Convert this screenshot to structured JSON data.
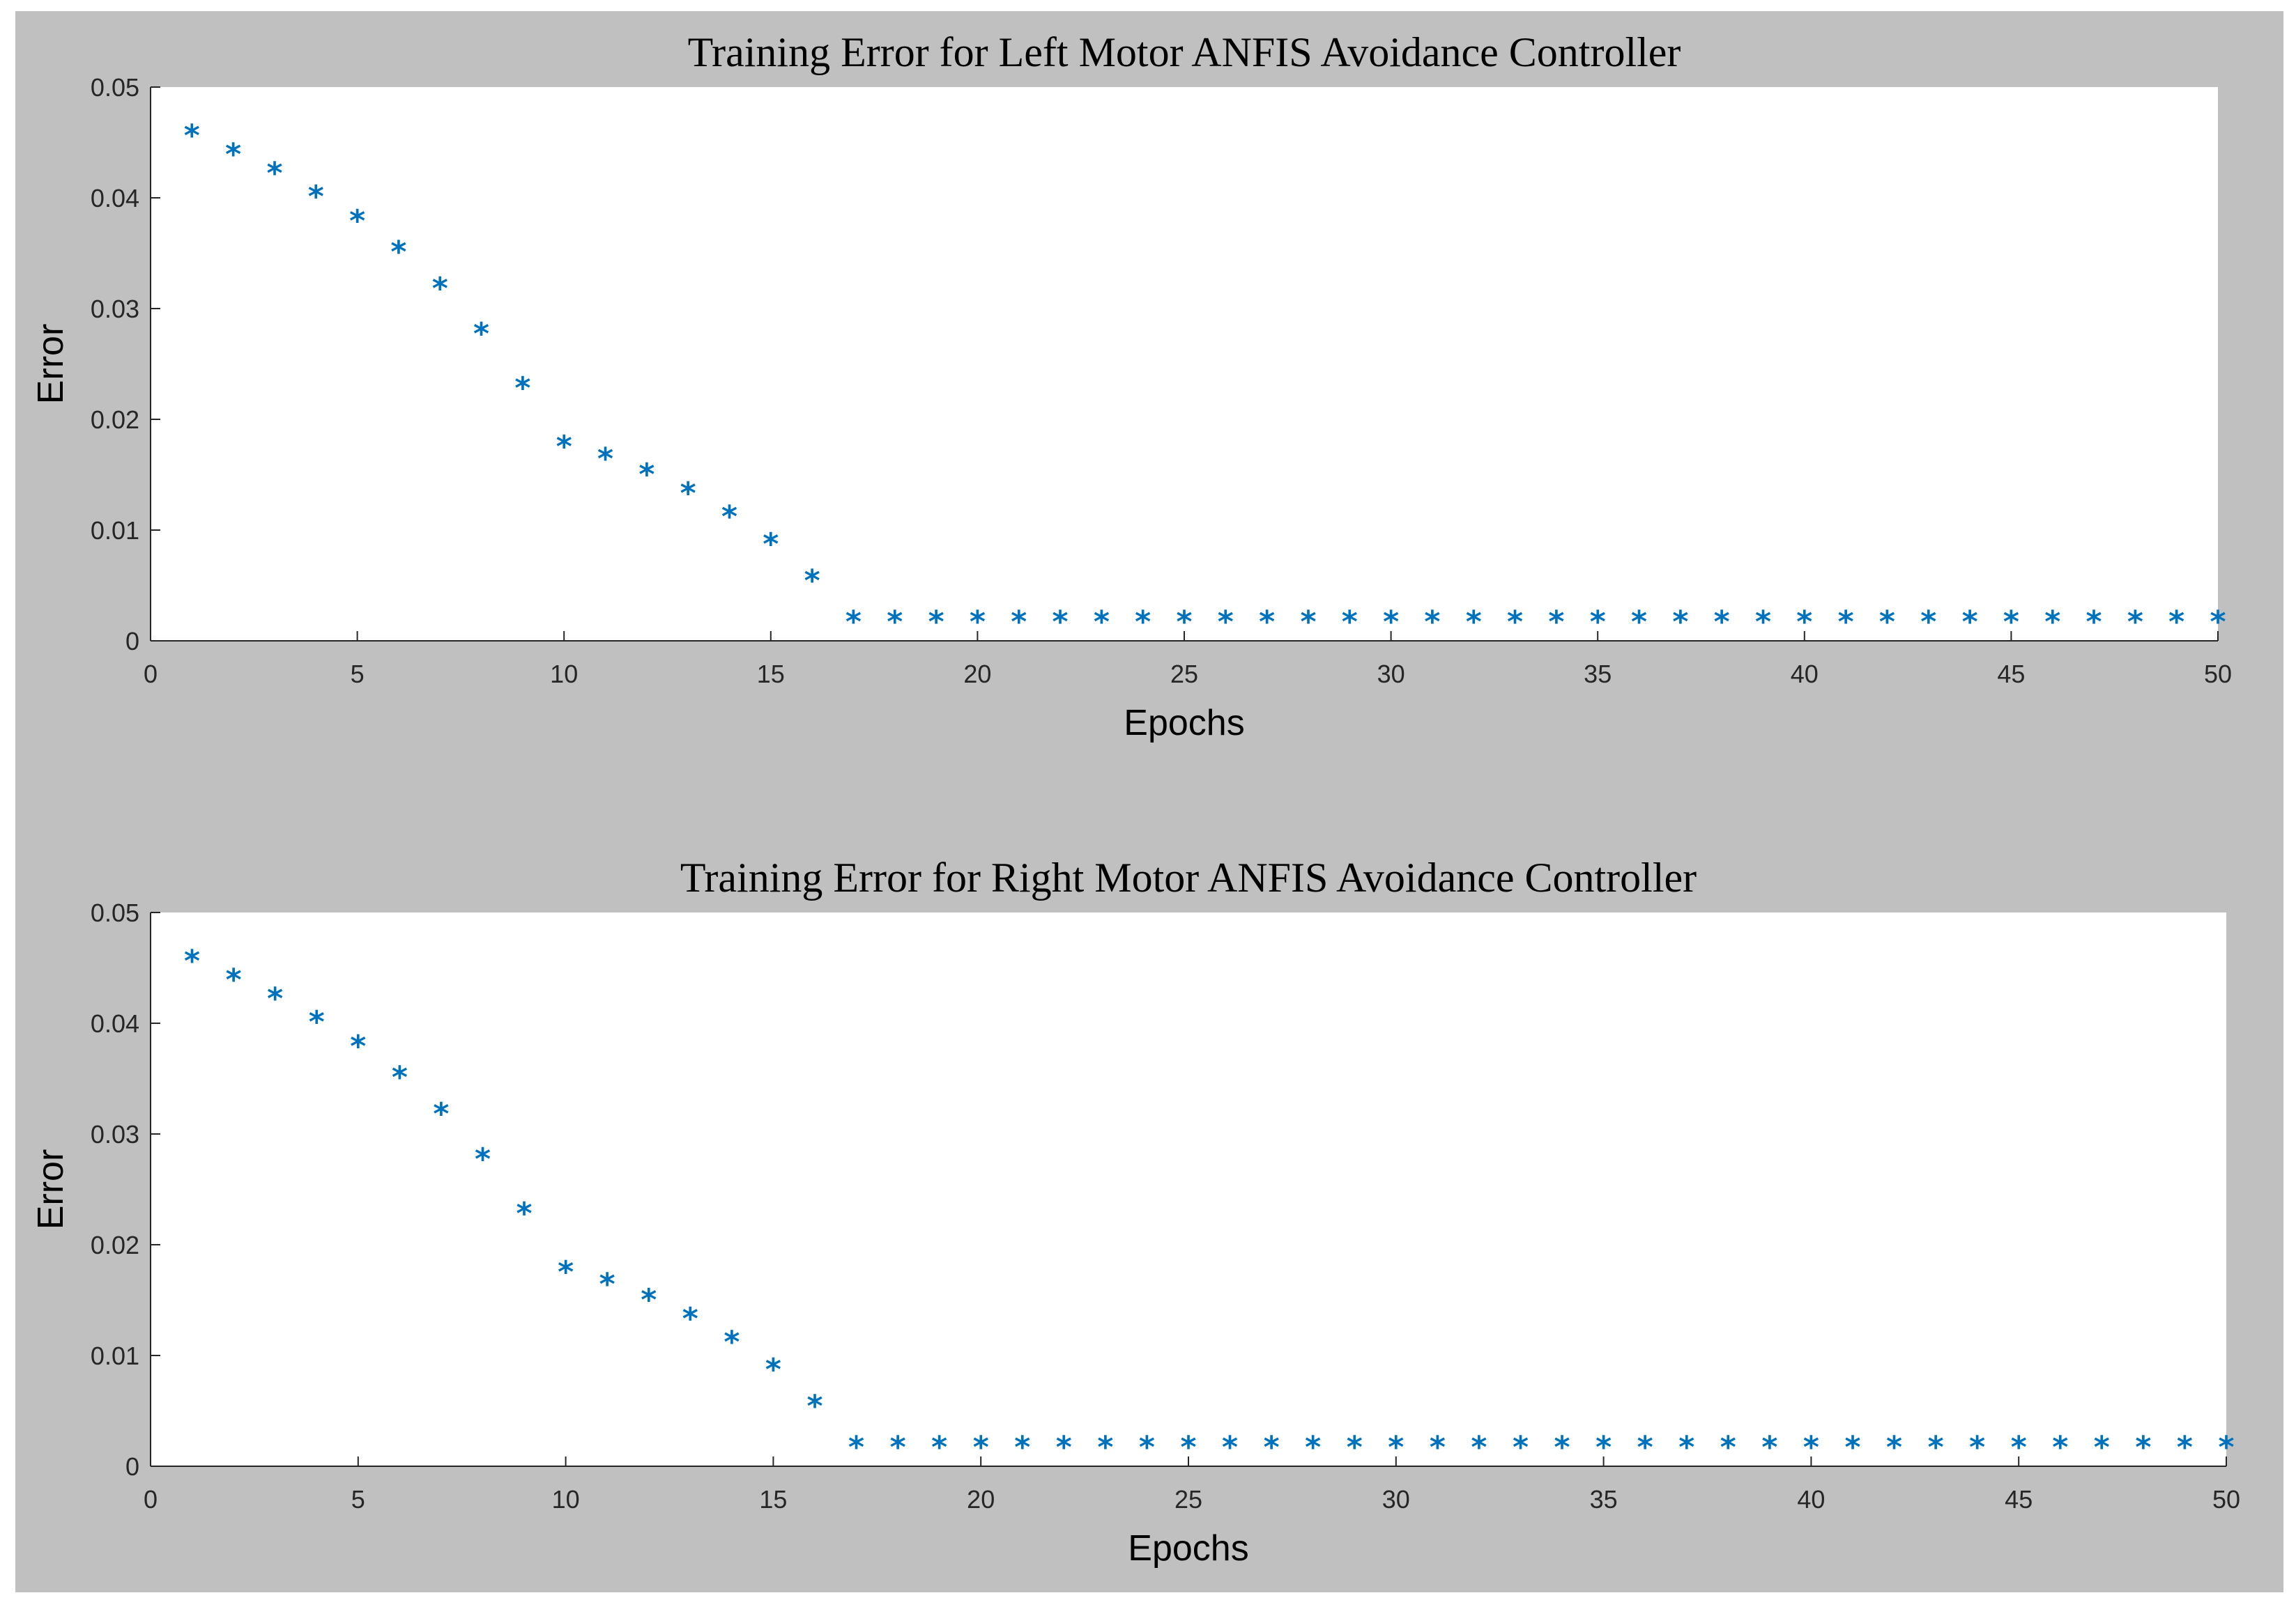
{
  "figure": {
    "background": "#c0c0c0",
    "plot_background": "#ffffff",
    "marker_color": "#0072bd",
    "marker_symbol": "*"
  },
  "chart_data": [
    {
      "type": "scatter",
      "title": "Training Error for Left Motor ANFIS Avoidance Controller",
      "xlabel": "Epochs",
      "ylabel": "Error",
      "xlim": [
        0,
        50
      ],
      "ylim": [
        0,
        0.05
      ],
      "xticks": [
        0,
        5,
        10,
        15,
        20,
        25,
        30,
        35,
        40,
        45,
        50
      ],
      "yticks": [
        0,
        0.01,
        0.02,
        0.03,
        0.04,
        0.05
      ],
      "xtick_labels": [
        "0",
        "5",
        "10",
        "15",
        "20",
        "25",
        "30",
        "35",
        "40",
        "45",
        "50"
      ],
      "ytick_labels": [
        "0",
        "0.01",
        "0.02",
        "0.03",
        "0.04",
        "0.05"
      ],
      "grid": false,
      "x": [
        1,
        2,
        3,
        4,
        5,
        6,
        7,
        8,
        9,
        10,
        11,
        12,
        13,
        14,
        15,
        16,
        17,
        18,
        19,
        20,
        21,
        22,
        23,
        24,
        25,
        26,
        27,
        28,
        29,
        30,
        31,
        32,
        33,
        34,
        35,
        36,
        37,
        38,
        39,
        40,
        41,
        42,
        43,
        44,
        45,
        46,
        47,
        48,
        49,
        50
      ],
      "y": [
        0.0457,
        0.044,
        0.0423,
        0.0402,
        0.038,
        0.0352,
        0.0319,
        0.0278,
        0.0229,
        0.0176,
        0.0165,
        0.0151,
        0.0134,
        0.0113,
        0.0088,
        0.0055,
        0.0018,
        0.0018,
        0.0018,
        0.0018,
        0.0018,
        0.0018,
        0.0018,
        0.0018,
        0.0018,
        0.0018,
        0.0018,
        0.0018,
        0.0018,
        0.0018,
        0.0018,
        0.0018,
        0.0018,
        0.0018,
        0.0018,
        0.0018,
        0.0018,
        0.0018,
        0.0018,
        0.0018,
        0.0018,
        0.0018,
        0.0018,
        0.0018,
        0.0018,
        0.0018,
        0.0018,
        0.0018,
        0.0018,
        0.0018
      ]
    },
    {
      "type": "scatter",
      "title": "Training Error for Right Motor ANFIS Avoidance Controller",
      "xlabel": "Epochs",
      "ylabel": "Error",
      "xlim": [
        0,
        50
      ],
      "ylim": [
        0,
        0.05
      ],
      "xticks": [
        0,
        5,
        10,
        15,
        20,
        25,
        30,
        35,
        40,
        45,
        50
      ],
      "yticks": [
        0,
        0.01,
        0.02,
        0.03,
        0.04,
        0.05
      ],
      "xtick_labels": [
        "0",
        "5",
        "10",
        "15",
        "20",
        "25",
        "30",
        "35",
        "40",
        "45",
        "50"
      ],
      "ytick_labels": [
        "0",
        "0.01",
        "0.02",
        "0.03",
        "0.04",
        "0.05"
      ],
      "grid": false,
      "x": [
        1,
        2,
        3,
        4,
        5,
        6,
        7,
        8,
        9,
        10,
        11,
        12,
        13,
        14,
        15,
        16,
        17,
        18,
        19,
        20,
        21,
        22,
        23,
        24,
        25,
        26,
        27,
        28,
        29,
        30,
        31,
        32,
        33,
        34,
        35,
        36,
        37,
        38,
        39,
        40,
        41,
        42,
        43,
        44,
        45,
        46,
        47,
        48,
        49,
        50
      ],
      "y": [
        0.0457,
        0.044,
        0.0423,
        0.0402,
        0.038,
        0.0352,
        0.0319,
        0.0278,
        0.0229,
        0.0176,
        0.0165,
        0.0151,
        0.0134,
        0.0113,
        0.0088,
        0.0055,
        0.0018,
        0.0018,
        0.0018,
        0.0018,
        0.0018,
        0.0018,
        0.0018,
        0.0018,
        0.0018,
        0.0018,
        0.0018,
        0.0018,
        0.0018,
        0.0018,
        0.0018,
        0.0018,
        0.0018,
        0.0018,
        0.0018,
        0.0018,
        0.0018,
        0.0018,
        0.0018,
        0.0018,
        0.0018,
        0.0018,
        0.0018,
        0.0018,
        0.0018,
        0.0018,
        0.0018,
        0.0018,
        0.0018,
        0.0018
      ]
    }
  ]
}
